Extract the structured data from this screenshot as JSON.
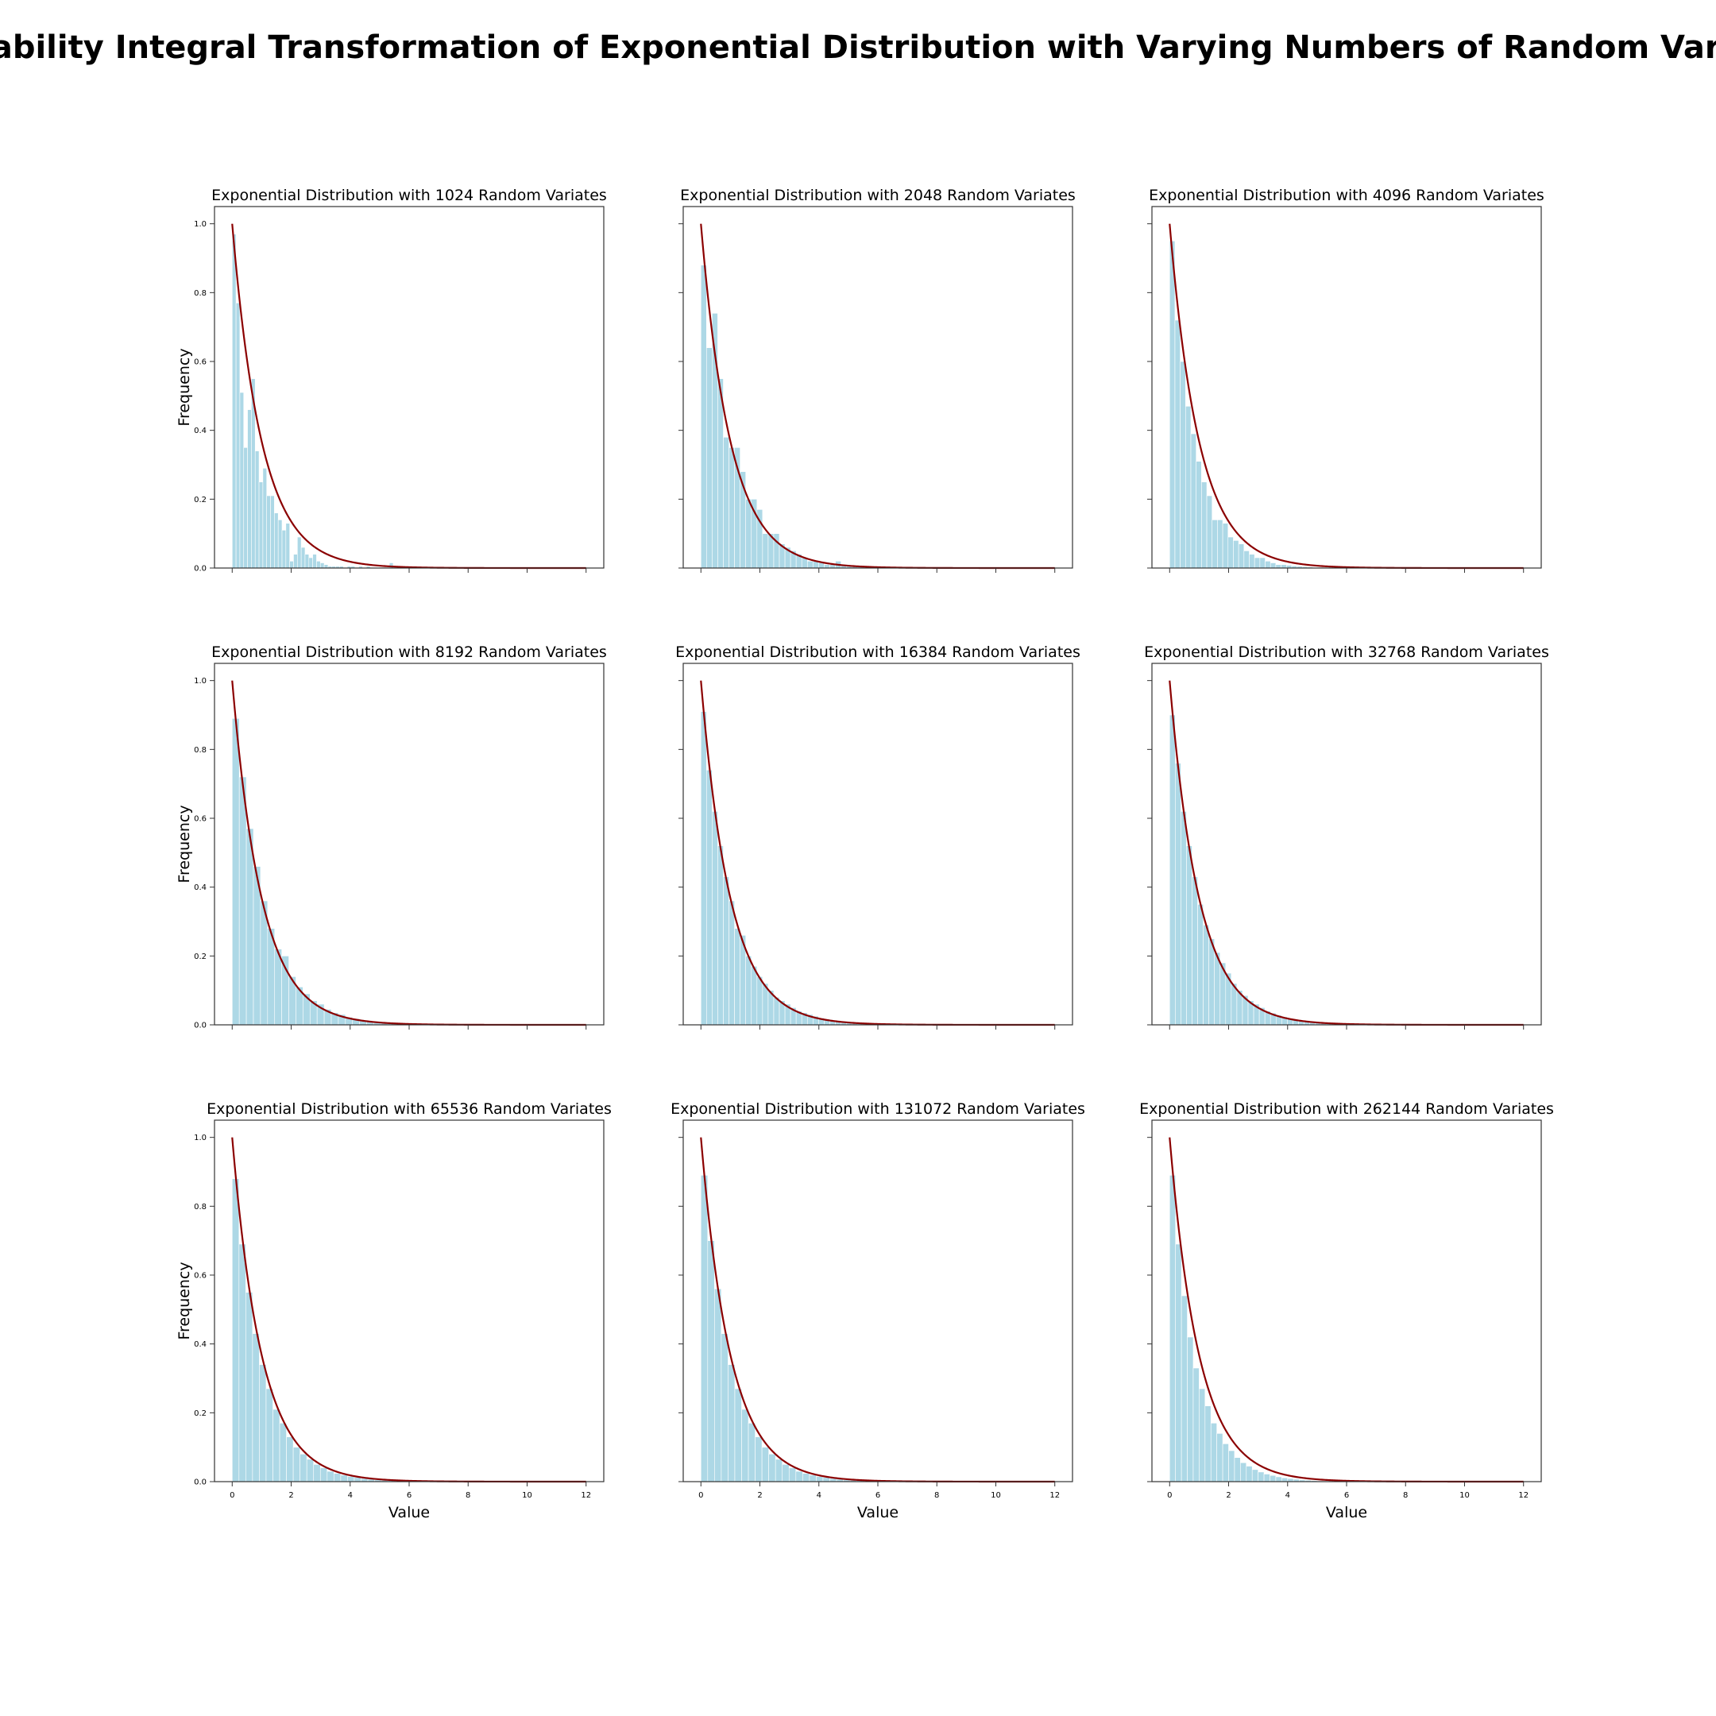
{
  "figure": {
    "suptitle": "Probability Integral Transformation of Exponential Distribution with Varying Numbers of Random Variates"
  },
  "colors": {
    "bars": "#add8e6",
    "curve": "#8b0000",
    "axes": "#333333"
  },
  "chart_data": [
    {
      "type": "bar",
      "title": "Exponential Distribution with 1024 Random Variates",
      "xlabel": "",
      "ylabel": "Frequency",
      "xlim": [
        -0.6,
        12.6
      ],
      "ylim": [
        0,
        1.05
      ],
      "xticks": [
        0,
        2,
        4,
        6,
        8,
        10,
        12
      ],
      "yticks": [
        0.0,
        0.2,
        0.4,
        0.6,
        0.8,
        1.0
      ],
      "show_xticklabels": false,
      "show_yticklabels": true,
      "bin_width": 0.13,
      "values": [
        0.97,
        0.77,
        0.51,
        0.35,
        0.46,
        0.55,
        0.34,
        0.25,
        0.29,
        0.21,
        0.21,
        0.16,
        0.14,
        0.11,
        0.13,
        0.02,
        0.04,
        0.09,
        0.06,
        0.04,
        0.03,
        0.04,
        0.02,
        0.015,
        0.01,
        0.005,
        0.005,
        0.005,
        0.005,
        0.0,
        0.005,
        0.005,
        0.0,
        0.005,
        0.0,
        0.005,
        0.0,
        0.0,
        0.0,
        0.0,
        0.0,
        0.015
      ],
      "curve": {
        "label": "",
        "formula": "exp(-x)",
        "x_range": [
          0,
          12
        ]
      }
    },
    {
      "type": "bar",
      "title": "Exponential Distribution with 2048 Random Variates",
      "xlabel": "",
      "ylabel": "",
      "xlim": [
        -0.6,
        12.6
      ],
      "ylim": [
        0,
        1.05
      ],
      "xticks": [
        0,
        2,
        4,
        6,
        8,
        10,
        12
      ],
      "yticks": [
        0.0,
        0.2,
        0.4,
        0.6,
        0.8,
        1.0
      ],
      "show_xticklabels": false,
      "show_yticklabels": false,
      "bin_width": 0.19,
      "values": [
        0.88,
        0.64,
        0.74,
        0.55,
        0.38,
        0.35,
        0.35,
        0.28,
        0.2,
        0.2,
        0.17,
        0.1,
        0.1,
        0.1,
        0.07,
        0.06,
        0.05,
        0.04,
        0.03,
        0.02,
        0.02,
        0.015,
        0.01,
        0.01,
        0.02,
        0.01,
        0.005,
        0.005,
        0.005,
        0.0,
        0.005
      ],
      "curve": {
        "label": "",
        "formula": "exp(-x)",
        "x_range": [
          0,
          12
        ]
      }
    },
    {
      "type": "bar",
      "title": "Exponential Distribution with 4096 Random Variates",
      "xlabel": "",
      "ylabel": "",
      "xlim": [
        -0.6,
        12.6
      ],
      "ylim": [
        0,
        1.05
      ],
      "xticks": [
        0,
        2,
        4,
        6,
        8,
        10,
        12
      ],
      "yticks": [
        0.0,
        0.2,
        0.4,
        0.6,
        0.8,
        1.0
      ],
      "show_xticklabels": false,
      "show_yticklabels": false,
      "bin_width": 0.18,
      "values": [
        0.95,
        0.72,
        0.6,
        0.47,
        0.39,
        0.31,
        0.25,
        0.21,
        0.14,
        0.14,
        0.13,
        0.09,
        0.08,
        0.07,
        0.05,
        0.04,
        0.03,
        0.03,
        0.02,
        0.015,
        0.01,
        0.01,
        0.008,
        0.006,
        0.005,
        0.004,
        0.003,
        0.002,
        0.002,
        0.001
      ],
      "curve": {
        "label": "",
        "formula": "exp(-x)",
        "x_range": [
          0,
          12
        ]
      }
    },
    {
      "type": "bar",
      "title": "Exponential Distribution with 8192 Random Variates",
      "xlabel": "",
      "ylabel": "Frequency",
      "xlim": [
        -0.6,
        12.6
      ],
      "ylim": [
        0,
        1.05
      ],
      "xticks": [
        0,
        2,
        4,
        6,
        8,
        10,
        12
      ],
      "yticks": [
        0.0,
        0.2,
        0.4,
        0.6,
        0.8,
        1.0
      ],
      "show_xticklabels": false,
      "show_yticklabels": true,
      "bin_width": 0.24,
      "values": [
        0.89,
        0.72,
        0.57,
        0.46,
        0.36,
        0.28,
        0.22,
        0.2,
        0.14,
        0.11,
        0.09,
        0.07,
        0.06,
        0.045,
        0.035,
        0.03,
        0.022,
        0.018,
        0.014,
        0.011,
        0.009,
        0.007,
        0.005,
        0.004,
        0.003,
        0.002,
        0.002,
        0.001
      ],
      "curve": {
        "label": "",
        "formula": "exp(-x)",
        "x_range": [
          0,
          12
        ]
      }
    },
    {
      "type": "bar",
      "title": "Exponential Distribution with 16384 Random Variates",
      "xlabel": "",
      "ylabel": "",
      "xlim": [
        -0.6,
        12.6
      ],
      "ylim": [
        0,
        1.05
      ],
      "xticks": [
        0,
        2,
        4,
        6,
        8,
        10,
        12
      ],
      "yticks": [
        0.0,
        0.2,
        0.4,
        0.6,
        0.8,
        1.0
      ],
      "show_xticklabels": false,
      "show_yticklabels": false,
      "bin_width": 0.19,
      "values": [
        0.91,
        0.74,
        0.62,
        0.52,
        0.43,
        0.36,
        0.28,
        0.26,
        0.2,
        0.17,
        0.14,
        0.12,
        0.1,
        0.08,
        0.07,
        0.06,
        0.05,
        0.04,
        0.035,
        0.03,
        0.025,
        0.02,
        0.017,
        0.014,
        0.012,
        0.01,
        0.008,
        0.006,
        0.005,
        0.004,
        0.003,
        0.002
      ],
      "curve": {
        "label": "",
        "formula": "exp(-x)",
        "x_range": [
          0,
          12
        ]
      }
    },
    {
      "type": "bar",
      "title": "Exponential Distribution with 32768 Random Variates",
      "xlabel": "",
      "ylabel": "",
      "xlim": [
        -0.6,
        12.6
      ],
      "ylim": [
        0,
        1.05
      ],
      "xticks": [
        0,
        2,
        4,
        6,
        8,
        10,
        12
      ],
      "yticks": [
        0.0,
        0.2,
        0.4,
        0.6,
        0.8,
        1.0
      ],
      "show_xticklabels": false,
      "show_yticklabels": false,
      "bin_width": 0.19,
      "values": [
        0.9,
        0.76,
        0.62,
        0.52,
        0.43,
        0.35,
        0.29,
        0.25,
        0.21,
        0.18,
        0.15,
        0.12,
        0.1,
        0.085,
        0.07,
        0.06,
        0.05,
        0.04,
        0.034,
        0.028,
        0.023,
        0.019,
        0.016,
        0.013,
        0.011,
        0.009,
        0.007,
        0.006,
        0.005,
        0.004
      ],
      "curve": {
        "label": "",
        "formula": "exp(-x)",
        "x_range": [
          0,
          12
        ]
      }
    },
    {
      "type": "bar",
      "title": "Exponential Distribution with 65536 Random Variates",
      "xlabel": "Value",
      "ylabel": "Frequency",
      "xlim": [
        -0.6,
        12.6
      ],
      "ylim": [
        0,
        1.05
      ],
      "xticks": [
        0,
        2,
        4,
        6,
        8,
        10,
        12
      ],
      "yticks": [
        0.0,
        0.2,
        0.4,
        0.6,
        0.8,
        1.0
      ],
      "show_xticklabels": true,
      "show_yticklabels": true,
      "bin_width": 0.23,
      "values": [
        0.88,
        0.69,
        0.55,
        0.43,
        0.34,
        0.27,
        0.21,
        0.17,
        0.13,
        0.1,
        0.08,
        0.065,
        0.05,
        0.04,
        0.03,
        0.024,
        0.019,
        0.015,
        0.012,
        0.009,
        0.007,
        0.005,
        0.004,
        0.003,
        0.002,
        0.002
      ],
      "curve": {
        "label": "",
        "formula": "exp(-x)",
        "x_range": [
          0,
          12
        ]
      }
    },
    {
      "type": "bar",
      "title": "Exponential Distribution with 131072 Random Variates",
      "xlabel": "Value",
      "ylabel": "",
      "xlim": [
        -0.6,
        12.6
      ],
      "ylim": [
        0,
        1.05
      ],
      "xticks": [
        0,
        2,
        4,
        6,
        8,
        10,
        12
      ],
      "yticks": [
        0.0,
        0.2,
        0.4,
        0.6,
        0.8,
        1.0
      ],
      "show_xticklabels": true,
      "show_yticklabels": false,
      "bin_width": 0.23,
      "values": [
        0.89,
        0.7,
        0.56,
        0.43,
        0.34,
        0.27,
        0.21,
        0.17,
        0.13,
        0.1,
        0.08,
        0.065,
        0.05,
        0.04,
        0.03,
        0.024,
        0.019,
        0.015,
        0.012,
        0.009,
        0.007,
        0.005,
        0.004,
        0.003,
        0.002,
        0.002
      ],
      "curve": {
        "label": "",
        "formula": "exp(-x)",
        "x_range": [
          0,
          12
        ]
      }
    },
    {
      "type": "bar",
      "title": "Exponential Distribution with 262144 Random Variates",
      "xlabel": "Value",
      "ylabel": "",
      "xlim": [
        -0.6,
        12.6
      ],
      "ylim": [
        0,
        1.05
      ],
      "xticks": [
        0,
        2,
        4,
        6,
        8,
        10,
        12
      ],
      "yticks": [
        0.0,
        0.2,
        0.4,
        0.6,
        0.8,
        1.0
      ],
      "show_xticklabels": true,
      "show_yticklabels": false,
      "bin_width": 0.2,
      "values": [
        0.89,
        0.69,
        0.54,
        0.42,
        0.33,
        0.27,
        0.22,
        0.17,
        0.14,
        0.11,
        0.09,
        0.07,
        0.055,
        0.045,
        0.035,
        0.028,
        0.022,
        0.018,
        0.014,
        0.011,
        0.009,
        0.007,
        0.005,
        0.004,
        0.003,
        0.002,
        0.002,
        0.001
      ],
      "curve": {
        "label": "",
        "formula": "exp(-x)",
        "x_range": [
          0,
          12
        ]
      }
    }
  ]
}
